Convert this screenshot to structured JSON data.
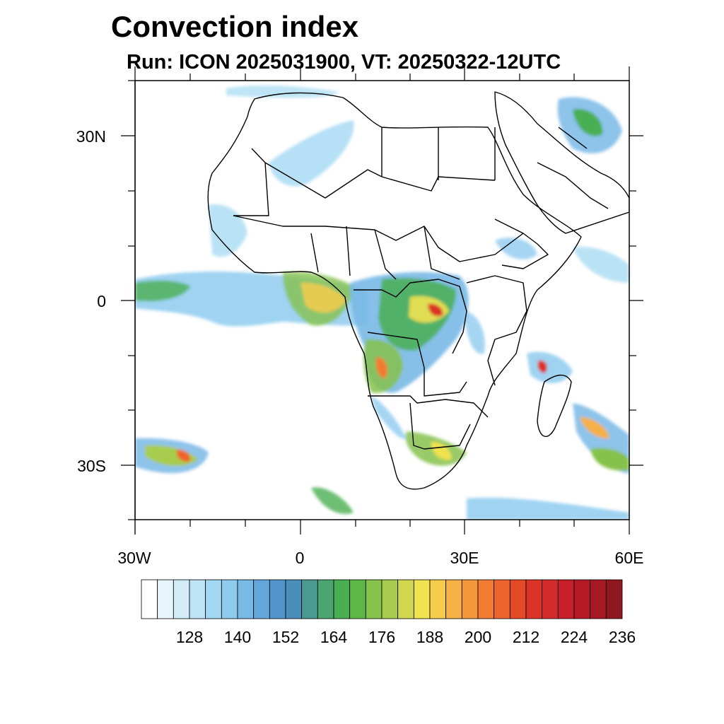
{
  "title": "Convection index",
  "subtitle": "Run: ICON 2025031900,  VT: 20250322-12UTC",
  "map": {
    "lat_labels": [
      "30N",
      "0",
      "30S"
    ],
    "lon_labels": [
      "30W",
      "0",
      "30E",
      "60E"
    ],
    "extent": {
      "lon_min": -30,
      "lon_max": 60,
      "lat_min": -40,
      "lat_max": 40
    }
  },
  "colorbar": {
    "labels": [
      "128",
      "140",
      "152",
      "164",
      "176",
      "188",
      "200",
      "212",
      "224",
      "236"
    ],
    "colors": [
      "#ffffff",
      "#e8f5fc",
      "#d2ecf8",
      "#bde3f5",
      "#a3d8f2",
      "#8ecbef",
      "#79b9e6",
      "#63a6dc",
      "#5295cd",
      "#4a8eb9",
      "#4a9a93",
      "#4aa66e",
      "#4aaf53",
      "#5cb747",
      "#86c24c",
      "#a8cc4e",
      "#d1d84f",
      "#f0e250",
      "#f6cc4c",
      "#f6b046",
      "#f5963c",
      "#f27c33",
      "#ee642c",
      "#e54a28",
      "#dc3328",
      "#d42a2c",
      "#c71f2a",
      "#b61a27",
      "#a61824",
      "#8f1720"
    ]
  },
  "colors": {
    "low": "#a3d8f2",
    "mid": "#4aaf53",
    "high": "#f0e250",
    "extreme": "#dc3328",
    "coast": "#000000"
  }
}
